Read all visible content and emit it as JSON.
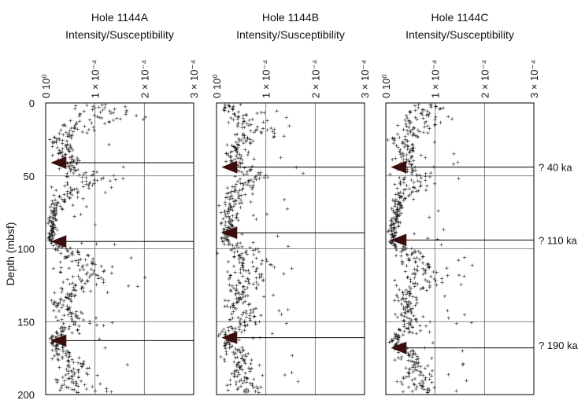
{
  "chart_data": {
    "type": "scatter",
    "ylabel": "Depth (mbsf)",
    "ylim": [
      0,
      200
    ],
    "y_ticks": [
      "0",
      "50",
      "100",
      "150",
      "200"
    ],
    "xlim": [
      0,
      0.0003
    ],
    "x_ticks": [
      "0 10⁰",
      "1 × 10⁻⁴",
      "2 × 10⁻⁴",
      "3 × 10⁻⁴"
    ],
    "grid": true,
    "marker": "+",
    "panels": [
      {
        "hole": "Hole 1144A",
        "variable": "Intensity/Susceptibility",
        "arrow_depths": [
          41,
          95,
          163
        ],
        "profile": [
          [
            5,
            0.0001
          ],
          [
            10,
            0.00012
          ],
          [
            15,
            8e-05
          ],
          [
            20,
            6e-05
          ],
          [
            25,
            3e-05
          ],
          [
            30,
            4e-05
          ],
          [
            35,
            3.5e-05
          ],
          [
            40,
            4e-05
          ],
          [
            45,
            5e-05
          ],
          [
            50,
            9e-05
          ],
          [
            55,
            8e-05
          ],
          [
            60,
            5e-05
          ],
          [
            70,
            2e-05
          ],
          [
            80,
            1.5e-05
          ],
          [
            90,
            1.2e-05
          ],
          [
            95,
            1e-05
          ],
          [
            100,
            4e-05
          ],
          [
            110,
            8e-05
          ],
          [
            120,
            9e-05
          ],
          [
            130,
            5e-05
          ],
          [
            140,
            3e-05
          ],
          [
            150,
            6e-05
          ],
          [
            160,
            2e-05
          ],
          [
            165,
            1.5e-05
          ],
          [
            170,
            3e-05
          ],
          [
            180,
            6e-05
          ],
          [
            190,
            5e-05
          ],
          [
            197,
            8e-05
          ]
        ]
      },
      {
        "hole": "Hole 1144B",
        "variable": "Intensity/Susceptibility",
        "arrow_depths": [
          44,
          89,
          161
        ],
        "profile": [
          [
            5,
            2e-05
          ],
          [
            10,
            6e-05
          ],
          [
            15,
            7e-05
          ],
          [
            20,
            8e-05
          ],
          [
            25,
            5e-05
          ],
          [
            30,
            4e-05
          ],
          [
            35,
            4e-05
          ],
          [
            40,
            3e-05
          ],
          [
            45,
            5e-05
          ],
          [
            50,
            7e-05
          ],
          [
            55,
            6e-05
          ],
          [
            60,
            4e-05
          ],
          [
            70,
            3e-05
          ],
          [
            80,
            3e-05
          ],
          [
            90,
            1.5e-05
          ],
          [
            95,
            2e-05
          ],
          [
            100,
            5e-05
          ],
          [
            110,
            7e-05
          ],
          [
            120,
            6e-05
          ],
          [
            130,
            5e-05
          ],
          [
            140,
            4e-05
          ],
          [
            150,
            6e-05
          ],
          [
            160,
            2e-05
          ],
          [
            165,
            2e-05
          ],
          [
            170,
            4e-05
          ],
          [
            180,
            5e-05
          ],
          [
            190,
            5e-05
          ],
          [
            197,
            6e-05
          ]
        ]
      },
      {
        "hole": "Hole 1144C",
        "variable": "Intensity/Susceptibility",
        "arrow_depths": [
          44,
          94,
          168
        ],
        "profile": [
          [
            5,
            8e-05
          ],
          [
            10,
            9e-05
          ],
          [
            15,
            7e-05
          ],
          [
            20,
            6e-05
          ],
          [
            25,
            3e-05
          ],
          [
            30,
            4e-05
          ],
          [
            35,
            4e-05
          ],
          [
            40,
            5e-05
          ],
          [
            45,
            3e-05
          ],
          [
            50,
            7e-05
          ],
          [
            55,
            6e-05
          ],
          [
            60,
            4e-05
          ],
          [
            70,
            2.5e-05
          ],
          [
            80,
            2e-05
          ],
          [
            90,
            1.5e-05
          ],
          [
            95,
            1e-05
          ],
          [
            100,
            4e-05
          ],
          [
            110,
            7e-05
          ],
          [
            120,
            8e-05
          ],
          [
            130,
            5e-05
          ],
          [
            140,
            4e-05
          ],
          [
            150,
            6e-05
          ],
          [
            160,
            2e-05
          ],
          [
            165,
            2e-05
          ],
          [
            170,
            4e-05
          ],
          [
            180,
            6e-05
          ],
          [
            190,
            6e-05
          ],
          [
            197,
            7e-05
          ]
        ]
      }
    ],
    "age_labels": [
      {
        "text": "? 40 ka",
        "depth": 44
      },
      {
        "text": "? 110 ka",
        "depth": 94
      },
      {
        "text": "? 190 ka",
        "depth": 166
      }
    ],
    "colors": {
      "points": "#222222",
      "arrow_head": "#3b0d0d",
      "arrow_line": "#000000",
      "grid": "#666666"
    }
  }
}
